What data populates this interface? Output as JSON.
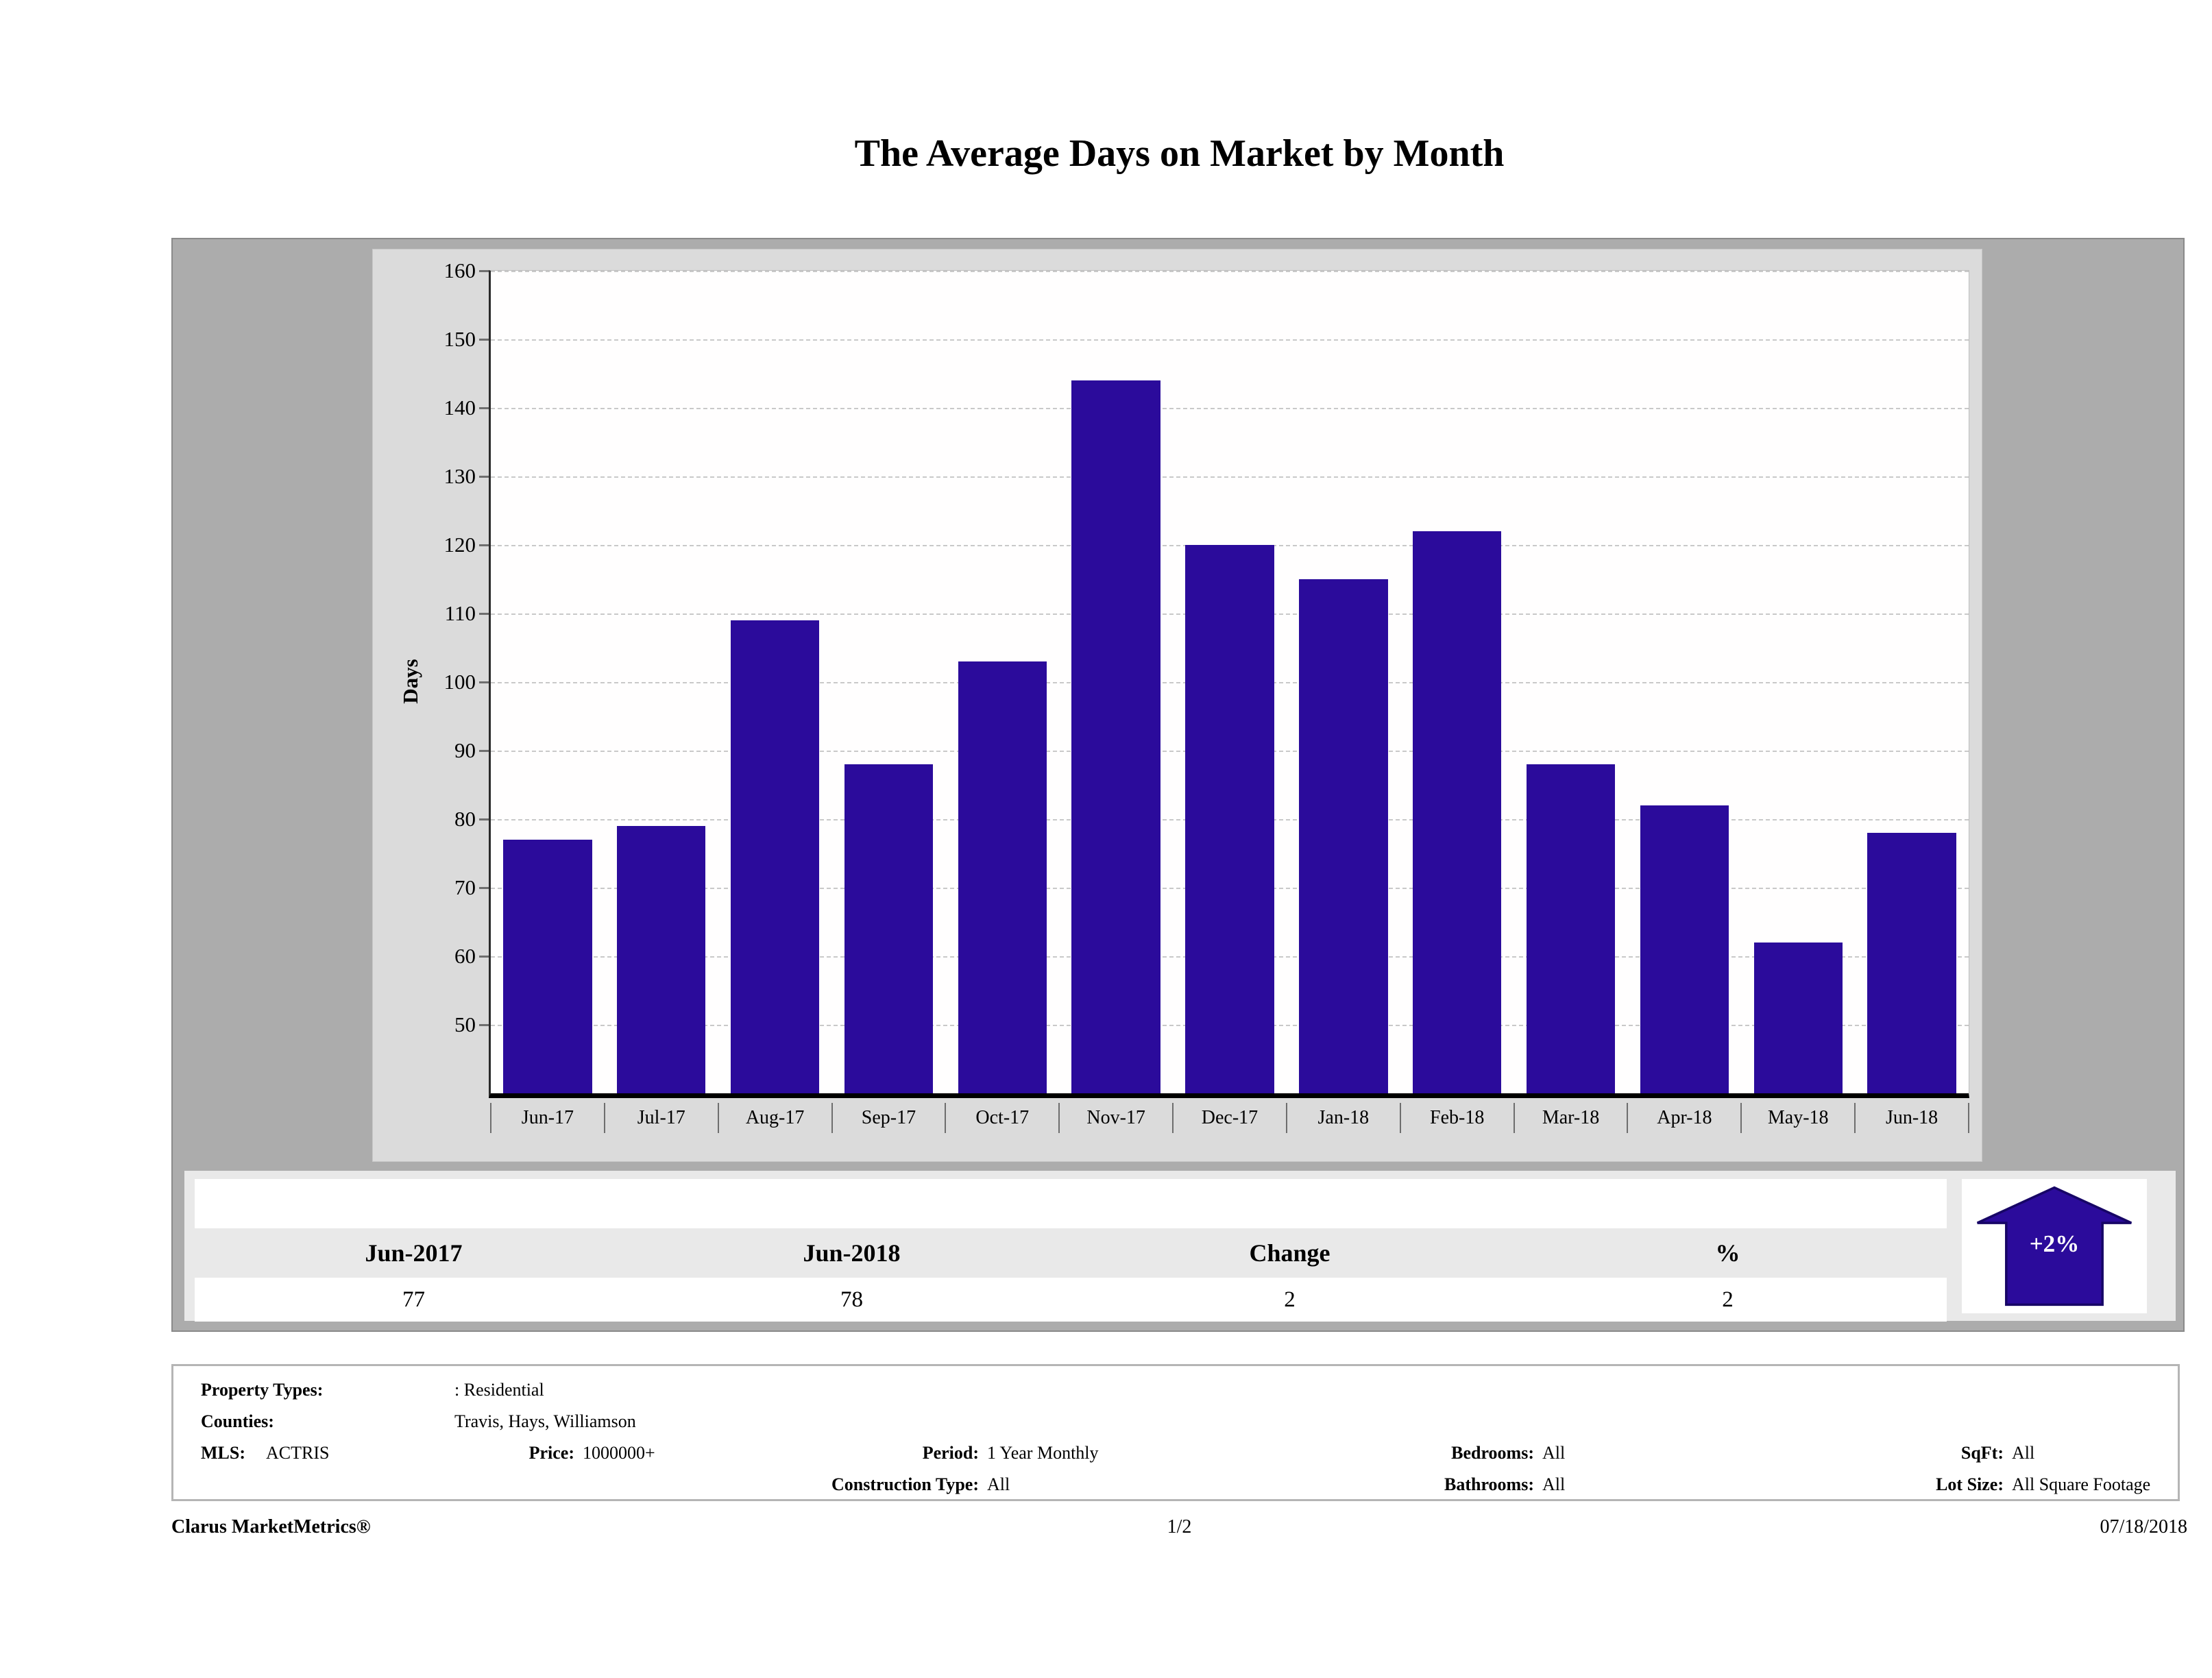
{
  "title": "The Average Days on Market by Month",
  "chart_data": {
    "type": "bar",
    "categories": [
      "Jun-17",
      "Jul-17",
      "Aug-17",
      "Sep-17",
      "Oct-17",
      "Nov-17",
      "Dec-17",
      "Jan-18",
      "Feb-18",
      "Mar-18",
      "Apr-18",
      "May-18",
      "Jun-18"
    ],
    "values": [
      77,
      79,
      109,
      88,
      103,
      144,
      120,
      115,
      122,
      88,
      82,
      62,
      78
    ],
    "title": "The Average Days on Market by Month",
    "xlabel": "",
    "ylabel": "Days",
    "ylim": [
      40,
      160
    ],
    "yticks": [
      50,
      60,
      70,
      80,
      90,
      100,
      110,
      120,
      130,
      140,
      150,
      160
    ],
    "grid": true,
    "legend": "none",
    "bar_color": "#2b0b9b"
  },
  "summary_table": {
    "headers": [
      "Jun-2017",
      "Jun-2018",
      "Change",
      "%"
    ],
    "values": [
      "77",
      "78",
      "2",
      "2"
    ]
  },
  "trend_badge": {
    "label": "+2%",
    "direction": "up",
    "color": "#2b0b9b"
  },
  "filters": {
    "property_types_label": "Property Types:",
    "property_types_value": ": Residential",
    "counties_label": "Counties:",
    "counties_value": "Travis, Hays, Williamson",
    "mls_label": "MLS:",
    "mls_value": "ACTRIS",
    "price_label": "Price:",
    "price_value": "1000000+",
    "period_label": "Period:",
    "period_value": "1 Year Monthly",
    "construction_label": "Construction Type:",
    "construction_value": "All",
    "bedrooms_label": "Bedrooms:",
    "bedrooms_value": "All",
    "bathrooms_label": "Bathrooms:",
    "bathrooms_value": "All",
    "sqft_label": "SqFt:",
    "sqft_value": "All",
    "lot_label": "Lot Size:",
    "lot_value": "All Square Footage"
  },
  "footer": {
    "brand": "Clarus MarketMetrics®",
    "page": "1/2",
    "date": "07/18/2018"
  }
}
